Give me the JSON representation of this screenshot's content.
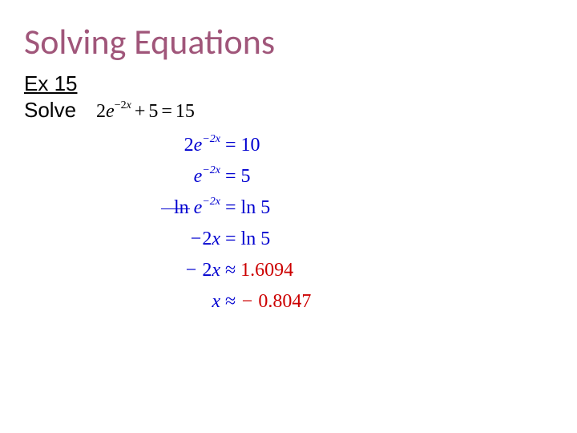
{
  "title": {
    "text": "Solving Equations",
    "color": "#a0567a",
    "fontsize": 44
  },
  "example_label": {
    "text": "Ex 15",
    "color": "#000000",
    "fontsize": 26
  },
  "solve_label": {
    "text": "Solve",
    "color": "#000000",
    "fontsize": 26
  },
  "problem": {
    "expr_html": "<span class='num'>2</span>e<sup>−2<span class='it'>x</span></sup><span class='op'>+</span><span class='num'>5</span><span class='op'>=</span><span class='num'>15</span>",
    "color": "#000000",
    "fontsize": 24
  },
  "steps_color": "#0000d0",
  "approx_color": "#cc0000",
  "steps": [
    {
      "lhs": "<span class='num'>2</span>e<sup>−2<span class='it'>x</span></sup>",
      "mid": "=",
      "rhs": "<span class='num'>10</span>",
      "rhs_color": "#0000d0"
    },
    {
      "lhs": "e<sup>−2<span class='it'>x</span></sup>",
      "mid": "=",
      "rhs": "<span class='num'>5</span>",
      "rhs_color": "#0000d0"
    },
    {
      "lhs": "<span class='num' style='font-style:normal'>ln</span> e<sup>−2<span class='it'>x</span></sup>",
      "mid": "=",
      "rhs": "<span class='num' style='font-style:normal'>ln</span> <span class='num'>5</span>",
      "rhs_color": "#0000d0",
      "strike_ln": true
    },
    {
      "lhs": "−<span class='num'>2</span>x",
      "mid": "=",
      "rhs": "<span class='num' style='font-style:normal'>ln</span> <span class='num'>5</span>",
      "rhs_color": "#0000d0"
    },
    {
      "lhs": "− <span class='num'>2</span>x",
      "mid": "≈",
      "rhs": "<span class='num'>1.6094</span>",
      "rhs_color": "#cc0000"
    },
    {
      "lhs": "x",
      "mid": "≈",
      "rhs": "− <span class='num'>0.8047</span>",
      "rhs_color": "#cc0000"
    }
  ]
}
